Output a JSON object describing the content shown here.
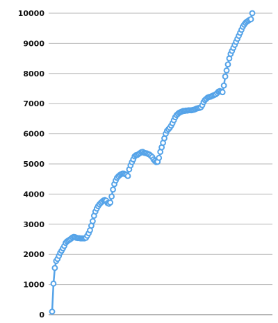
{
  "chart_data": {
    "type": "line",
    "title": "",
    "xlabel": "",
    "ylabel": "",
    "ylim": [
      0,
      10000
    ],
    "grid": true,
    "legend": "none",
    "y_ticks": [
      "0",
      "1000",
      "2000",
      "3000",
      "4000",
      "5000",
      "6000",
      "7000",
      "8000",
      "9000",
      "10000"
    ],
    "colors": {
      "line": "#55a3e8",
      "marker_fill": "#ffffff",
      "grid": "#b5b5b5",
      "axis": "#9e9e9e",
      "text": "#111111"
    },
    "series": [
      {
        "values": [
          100,
          1030,
          1550,
          1780,
          1850,
          1950,
          2050,
          2120,
          2200,
          2280,
          2380,
          2430,
          2460,
          2490,
          2520,
          2560,
          2580,
          2570,
          2550,
          2540,
          2540,
          2530,
          2530,
          2530,
          2530,
          2550,
          2620,
          2700,
          2800,
          2950,
          3100,
          3280,
          3420,
          3520,
          3600,
          3660,
          3710,
          3750,
          3790,
          3800,
          3780,
          3700,
          3680,
          3720,
          3920,
          4150,
          4330,
          4450,
          4540,
          4590,
          4630,
          4660,
          4680,
          4680,
          4660,
          4640,
          4600,
          4820,
          4950,
          5060,
          5150,
          5250,
          5290,
          5300,
          5330,
          5360,
          5390,
          5400,
          5370,
          5360,
          5350,
          5330,
          5310,
          5270,
          5230,
          5150,
          5100,
          5060,
          5070,
          5200,
          5400,
          5550,
          5700,
          5850,
          6000,
          6100,
          6150,
          6200,
          6270,
          6350,
          6450,
          6550,
          6620,
          6660,
          6700,
          6720,
          6740,
          6760,
          6760,
          6770,
          6770,
          6780,
          6780,
          6780,
          6790,
          6800,
          6820,
          6840,
          6850,
          6860,
          6880,
          6950,
          7050,
          7120,
          7160,
          7200,
          7220,
          7230,
          7250,
          7270,
          7290,
          7310,
          7350,
          7400,
          7420,
          7400,
          7380,
          7600,
          7900,
          8100,
          8300,
          8500,
          8650,
          8750,
          8850,
          8950,
          9050,
          9150,
          9250,
          9350,
          9450,
          9550,
          9620,
          9680,
          9720,
          9750,
          9780,
          9800,
          10000
        ]
      }
    ]
  }
}
